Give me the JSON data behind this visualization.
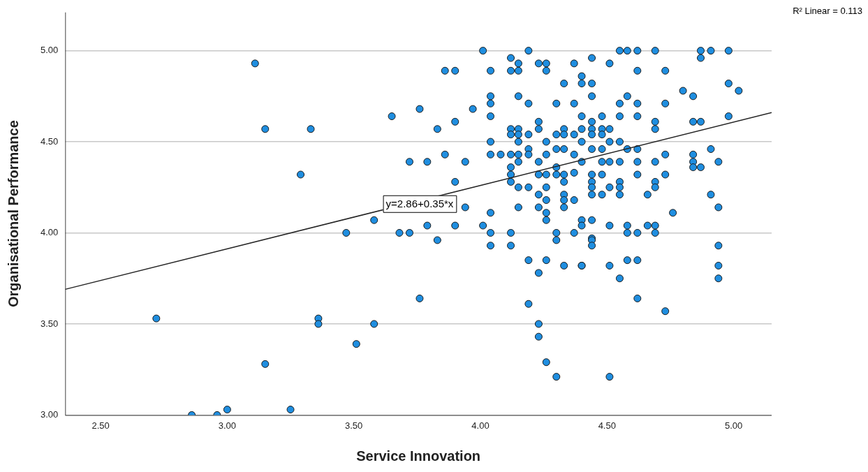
{
  "chart_data": {
    "type": "scatter",
    "xlabel": "Service Innovation",
    "ylabel": "Organisational Performance",
    "xlim": [
      2.36,
      5.15
    ],
    "ylim": [
      3.0,
      5.21
    ],
    "xticks": [
      {
        "value": 2.5,
        "label": "2.50"
      },
      {
        "value": 3,
        "label": "3.00"
      },
      {
        "value": 3.5,
        "label": "3.50"
      },
      {
        "value": 4,
        "label": "4.00"
      },
      {
        "value": 4.5,
        "label": "4.50"
      },
      {
        "value": 5,
        "label": "5.00"
      }
    ],
    "yticks": [
      {
        "value": 3,
        "label": "3.00"
      },
      {
        "value": 3.5,
        "label": "3.50"
      },
      {
        "value": 4,
        "label": "4.00"
      },
      {
        "value": 4.5,
        "label": "4.50"
      },
      {
        "value": 5,
        "label": "5.00"
      }
    ],
    "grid": "y",
    "legend": false,
    "annotations": [
      "R² Linear = 0.113",
      {
        "text": "y=2.86+0.35*x",
        "x": 3.76,
        "y": 4.16
      }
    ],
    "series": [
      {
        "color": "#1f8ee0",
        "marker": "circle",
        "x": [
          3.11,
          3.15,
          3.33,
          3.29,
          3.58,
          3.47,
          2.72,
          3.36,
          3.36,
          3.58,
          3.51,
          3.15,
          2.86,
          2.96,
          3.0,
          3.25,
          4.01,
          4.19,
          4.12,
          4.15,
          4.23,
          4.26,
          4.37,
          3.86,
          3.9,
          4.04,
          4.12,
          4.15,
          4.26,
          4.33,
          4.04,
          4.15,
          4.04,
          4.19,
          4.3,
          4.37,
          3.65,
          3.76,
          3.97,
          4.04,
          4.23,
          4.23,
          3.9,
          3.83,
          4.12,
          4.15,
          4.33,
          4.12,
          4.15,
          4.19,
          4.3,
          4.33,
          4.37,
          4.04,
          4.15,
          4.26,
          4.19,
          4.3,
          4.33,
          4.04,
          4.08,
          4.12,
          4.15,
          4.19,
          4.26,
          4.37,
          3.72,
          3.79,
          3.86,
          3.94,
          4.15,
          4.23,
          4.12,
          4.3,
          4.12,
          4.23,
          4.26,
          4.3,
          4.33,
          4.37,
          3.9,
          4.12,
          4.33,
          4.15,
          4.19,
          4.26,
          4.23,
          4.33,
          4.26,
          4.33,
          4.37,
          3.94,
          4.15,
          4.23,
          4.33,
          4.26,
          4.26,
          4.04,
          3.79,
          3.9,
          4.01,
          3.68,
          3.72,
          4.04,
          4.12,
          4.3,
          4.37,
          3.83,
          4.04,
          4.12,
          4.3,
          4.19,
          4.26,
          4.33,
          4.4,
          4.23,
          3.76,
          4.19,
          4.23,
          4.23,
          4.26,
          4.3,
          4.55,
          4.58,
          4.62,
          4.69,
          4.87,
          4.91,
          4.98,
          4.44,
          4.87,
          4.51,
          4.62,
          4.73,
          4.4,
          4.4,
          4.44,
          4.98,
          5.02,
          4.8,
          4.84,
          4.44,
          4.58,
          4.55,
          4.62,
          4.73,
          4.4,
          4.48,
          4.55,
          4.62,
          4.98,
          4.44,
          4.69,
          4.84,
          4.87,
          4.4,
          4.44,
          4.48,
          4.51,
          4.69,
          4.44,
          4.48,
          4.4,
          4.51,
          4.55,
          4.44,
          4.48,
          4.58,
          4.62,
          4.91,
          4.73,
          4.84,
          4.4,
          4.48,
          4.51,
          4.55,
          4.62,
          4.69,
          4.84,
          4.94,
          4.84,
          4.87,
          4.44,
          4.48,
          4.62,
          4.73,
          4.44,
          4.55,
          4.69,
          4.44,
          4.51,
          4.55,
          4.69,
          4.44,
          4.48,
          4.55,
          4.66,
          4.91,
          4.94,
          4.76,
          4.4,
          4.44,
          4.4,
          4.51,
          4.58,
          4.66,
          4.69,
          4.58,
          4.62,
          4.69,
          4.44,
          4.44,
          4.44,
          4.58,
          4.62,
          4.4,
          4.51,
          4.94,
          4.94,
          4.94,
          4.55,
          4.62,
          4.73,
          4.51
        ],
        "values": [
          4.93,
          4.57,
          4.57,
          4.32,
          4.07,
          4.0,
          3.53,
          3.53,
          3.5,
          3.5,
          3.39,
          3.28,
          3.0,
          3.0,
          3.03,
          3.03,
          5.0,
          5.0,
          4.96,
          4.93,
          4.93,
          4.93,
          4.93,
          4.89,
          4.89,
          4.89,
          4.89,
          4.89,
          4.89,
          4.82,
          4.75,
          4.75,
          4.71,
          4.71,
          4.71,
          4.71,
          4.64,
          4.68,
          4.68,
          4.64,
          4.61,
          4.57,
          4.61,
          4.57,
          4.57,
          4.57,
          4.57,
          4.54,
          4.54,
          4.54,
          4.54,
          4.54,
          4.54,
          4.5,
          4.5,
          4.5,
          4.46,
          4.46,
          4.46,
          4.43,
          4.43,
          4.43,
          4.43,
          4.43,
          4.43,
          4.43,
          4.39,
          4.39,
          4.43,
          4.39,
          4.39,
          4.39,
          4.36,
          4.36,
          4.32,
          4.32,
          4.32,
          4.32,
          4.32,
          4.33,
          4.28,
          4.28,
          4.28,
          4.25,
          4.25,
          4.25,
          4.21,
          4.21,
          4.18,
          4.18,
          4.18,
          4.14,
          4.14,
          4.14,
          4.14,
          4.11,
          4.07,
          4.11,
          4.04,
          4.04,
          4.04,
          4.0,
          4.0,
          4.0,
          4.0,
          4.0,
          4.0,
          3.96,
          3.93,
          3.93,
          3.96,
          3.85,
          3.85,
          3.82,
          3.82,
          3.78,
          3.64,
          3.61,
          3.5,
          3.43,
          3.29,
          3.21,
          5.0,
          5.0,
          5.0,
          5.0,
          5.0,
          5.0,
          5.0,
          4.96,
          4.96,
          4.93,
          4.89,
          4.89,
          4.86,
          4.82,
          4.82,
          4.82,
          4.78,
          4.78,
          4.75,
          4.75,
          4.75,
          4.71,
          4.71,
          4.71,
          4.64,
          4.64,
          4.64,
          4.64,
          4.64,
          4.61,
          4.61,
          4.61,
          4.61,
          4.57,
          4.57,
          4.57,
          4.57,
          4.57,
          4.54,
          4.54,
          4.5,
          4.5,
          4.5,
          4.46,
          4.46,
          4.46,
          4.46,
          4.46,
          4.43,
          4.43,
          4.39,
          4.39,
          4.39,
          4.39,
          4.39,
          4.39,
          4.39,
          4.39,
          4.36,
          4.36,
          4.32,
          4.32,
          4.32,
          4.32,
          4.28,
          4.28,
          4.28,
          4.25,
          4.25,
          4.25,
          4.25,
          4.21,
          4.21,
          4.21,
          4.21,
          4.21,
          4.14,
          4.11,
          4.07,
          4.07,
          4.04,
          4.04,
          4.04,
          4.04,
          4.04,
          4.0,
          4.0,
          4.0,
          3.97,
          3.96,
          3.93,
          3.85,
          3.85,
          3.82,
          3.82,
          3.93,
          3.82,
          3.75,
          3.75,
          3.64,
          3.57,
          3.21
        ]
      },
      {
        "type": "line",
        "marker": "none",
        "color": "#222222",
        "x": [
          2.36,
          5.15
        ],
        "values": [
          3.69,
          4.66
        ]
      }
    ]
  }
}
